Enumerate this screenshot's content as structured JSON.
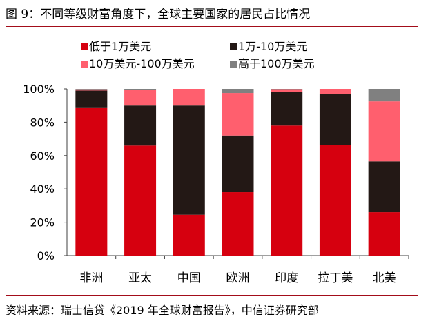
{
  "title": "图 9：不同等级财富角度下，全球主要国家的居民占比情况",
  "source": "资料来源：瑞士信贷《2019 年全球财富报告》，中信证券研究部",
  "chart_data": {
    "type": "bar",
    "stacked": true,
    "categories": [
      "非洲",
      "亚太",
      "中国",
      "欧洲",
      "印度",
      "拉丁美",
      "北美"
    ],
    "series": [
      {
        "name": "低于1万美元",
        "color": "#d6000f",
        "values": [
          88.5,
          66,
          24.5,
          38,
          78,
          66.5,
          26
        ]
      },
      {
        "name": "1万-10万美元",
        "color": "#231815",
        "values": [
          10.5,
          24,
          65.5,
          34,
          20,
          30.5,
          30.5
        ]
      },
      {
        "name": "10万美元-100万美元",
        "color": "#ff5f6e",
        "values": [
          0.7,
          9.5,
          10,
          25.5,
          1.8,
          3,
          36
        ]
      },
      {
        "name": "高于100万美元",
        "color": "#808080",
        "values": [
          0.3,
          0.5,
          0,
          2.5,
          0.2,
          0,
          7.5
        ]
      }
    ],
    "yticks": [
      "0%",
      "20%",
      "40%",
      "60%",
      "80%",
      "100%"
    ],
    "ylim": [
      0,
      100
    ],
    "legend": "top"
  }
}
